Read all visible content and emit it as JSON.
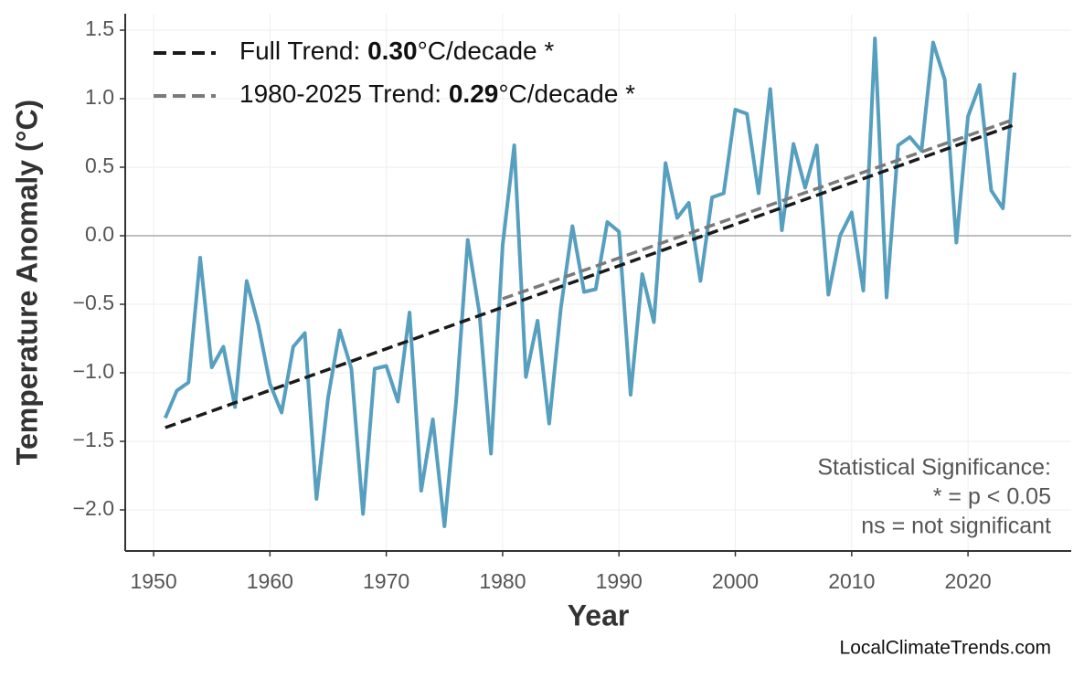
{
  "chart_data": {
    "type": "line",
    "x_label": "Year",
    "y_label": "Temperature Anomaly (°C)",
    "x": [
      1951,
      1952,
      1953,
      1954,
      1955,
      1956,
      1957,
      1958,
      1959,
      1960,
      1961,
      1962,
      1963,
      1964,
      1965,
      1966,
      1967,
      1968,
      1969,
      1970,
      1971,
      1972,
      1973,
      1974,
      1975,
      1976,
      1977,
      1978,
      1979,
      1980,
      1981,
      1982,
      1983,
      1984,
      1985,
      1986,
      1987,
      1988,
      1989,
      1990,
      1991,
      1992,
      1993,
      1994,
      1995,
      1996,
      1997,
      1998,
      1999,
      2000,
      2001,
      2002,
      2003,
      2004,
      2005,
      2006,
      2007,
      2008,
      2009,
      2010,
      2011,
      2012,
      2013,
      2014,
      2015,
      2016,
      2017,
      2018,
      2019,
      2020,
      2021,
      2022,
      2023,
      2024
    ],
    "series": [
      {
        "color": "#579fbf",
        "values": [
          -1.33,
          -1.13,
          -1.07,
          -0.16,
          -0.96,
          -0.81,
          -1.25,
          -0.33,
          -0.65,
          -1.08,
          -1.29,
          -0.81,
          -0.71,
          -1.92,
          -1.18,
          -0.69,
          -0.97,
          -2.03,
          -0.97,
          -0.95,
          -1.21,
          -0.56,
          -1.86,
          -1.34,
          -2.12,
          -1.21,
          -0.03,
          -0.56,
          -1.59,
          -0.07,
          0.66,
          -1.03,
          -0.62,
          -1.37,
          -0.53,
          0.07,
          -0.41,
          -0.39,
          0.1,
          0.03,
          -1.16,
          -0.28,
          -0.63,
          0.53,
          0.13,
          0.24,
          -0.33,
          0.28,
          0.31,
          0.92,
          0.89,
          0.31,
          1.07,
          0.04,
          0.67,
          0.35,
          0.66,
          -0.43,
          0.0,
          0.17,
          -0.4,
          1.44,
          -0.45,
          0.66,
          0.72,
          0.62,
          1.41,
          1.14,
          -0.05,
          0.87,
          1.1,
          0.33,
          0.2,
          1.19
        ]
      }
    ],
    "trends": [
      {
        "name": [
          "Full Trend: ",
          "0.30",
          "°C/decade *"
        ],
        "color": "#1a1a1a",
        "x": [
          1951,
          2024
        ],
        "values": [
          -1.4,
          0.81
        ]
      },
      {
        "name": [
          "1980-2025 Trend: ",
          "0.29",
          "°C/decade *"
        ],
        "color": "#7a7a7a",
        "x": [
          1980,
          2024
        ],
        "values": [
          -0.46,
          0.85
        ]
      }
    ],
    "xlim": [
      1947.56,
      2028.87
    ],
    "ylim": [
      -2.3,
      1.62
    ],
    "xticks": [
      1950,
      1960,
      1970,
      1980,
      1990,
      2000,
      2010,
      2020
    ],
    "yticks": [
      {
        "value": -2.0,
        "label": "−2.0"
      },
      {
        "value": -1.5,
        "label": "−1.5"
      },
      {
        "value": -1.0,
        "label": "−1.0"
      },
      {
        "value": -0.5,
        "label": "−0.5"
      },
      {
        "value": 0,
        "label": "0.0"
      },
      {
        "value": 0.5,
        "label": "0.5"
      },
      {
        "value": 1.0,
        "label": "1.0"
      },
      {
        "value": 1.5,
        "label": "1.5"
      }
    ],
    "grid": true,
    "note": [
      "Statistical Significance:",
      "* = p < 0.05",
      "ns = not significant"
    ],
    "watermark": "LocalClimateTrends.com"
  }
}
